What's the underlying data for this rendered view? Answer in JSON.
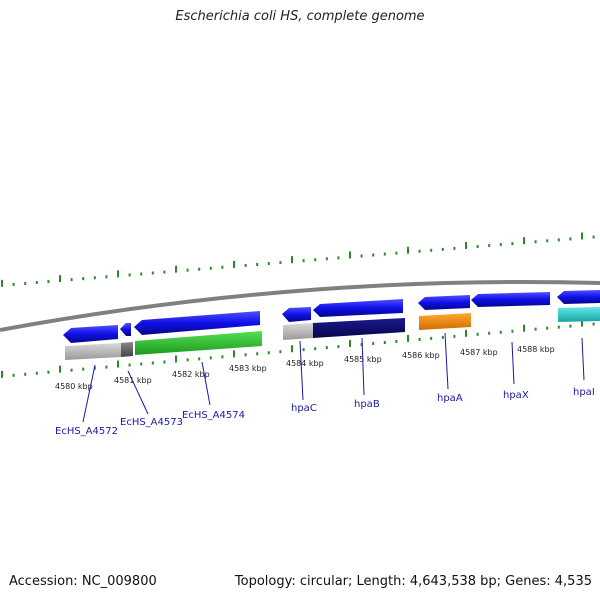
{
  "title": "Escherichia coli HS, complete genome",
  "footer": {
    "accession": "Accession: NC_009800",
    "genome_info": "Topology: circular; Length: 4,643,538 bp; Genes: 4,535"
  },
  "colors": {
    "backbone": "#808080",
    "tick": "#2a8a2a",
    "forward_gene": "#1010e8",
    "label_blue": "#1a1aa0"
  },
  "scale_labels": [
    "4580 kbp",
    "4581 kbp",
    "4582 kbp",
    "4583 kbp",
    "4584 kbp",
    "4585 kbp",
    "4586 kbp",
    "4587 kbp",
    "4588 kbp"
  ],
  "gene_labels": [
    "EcHS_A4572",
    "EcHS_A4573",
    "EcHS_A4574",
    "hpaC",
    "hpaB",
    "hpaA",
    "hpaX",
    "hpaI"
  ],
  "genes": [
    {
      "name": "EcHS_A4572",
      "strand": "reverse",
      "color": "#1010e8"
    },
    {
      "name": "EcHS_A4573",
      "strand": "reverse",
      "color": "#1010e8"
    },
    {
      "name": "EcHS_A4574",
      "strand": "reverse",
      "color": "#1010e8"
    },
    {
      "name": "hpaC",
      "strand": "reverse",
      "color": "#1010e8"
    },
    {
      "name": "hpaB",
      "strand": "reverse",
      "color": "#1010e8"
    },
    {
      "name": "hpaA",
      "strand": "forward",
      "color": "#1010e8"
    },
    {
      "name": "hpaX",
      "strand": "reverse",
      "color": "#1010e8"
    },
    {
      "name": "hpaI",
      "strand": "reverse",
      "color": "#1010e8"
    }
  ],
  "features": [
    {
      "color": "#c0c0c0"
    },
    {
      "color": "#606060"
    },
    {
      "color": "#33cc33"
    },
    {
      "color": "#b0b0b0"
    },
    {
      "color": "#0a0a70"
    },
    {
      "color": "#ff8800"
    },
    {
      "color": "#33cccc"
    }
  ]
}
